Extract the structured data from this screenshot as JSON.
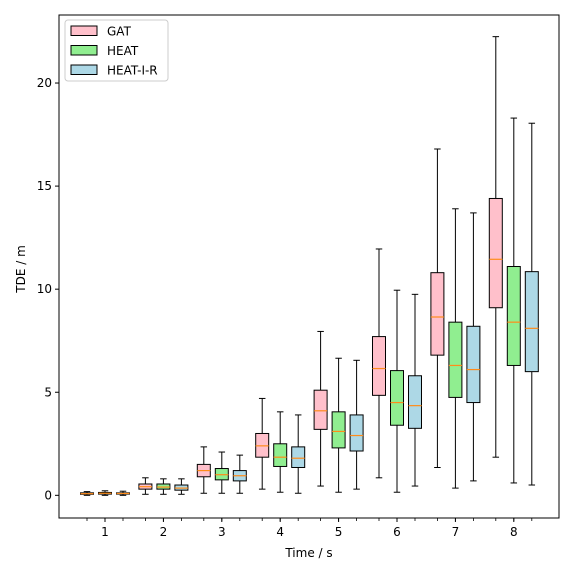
{
  "chart_data": {
    "type": "box",
    "xlabel": "Time / s",
    "ylabel": "TDE / m",
    "ylim": [
      -1.1,
      23.3
    ],
    "yticks": [
      0,
      5,
      10,
      15,
      20
    ],
    "categories": [
      "1",
      "2",
      "3",
      "4",
      "5",
      "6",
      "7",
      "8"
    ],
    "legend_position": "upper-left",
    "median_color": "#ff8c1a",
    "series": [
      {
        "name": "GAT",
        "color": "#ffc0cb",
        "boxes": [
          {
            "min": 0.0,
            "q1": 0.05,
            "median": 0.08,
            "q3": 0.12,
            "max": 0.18
          },
          {
            "min": 0.05,
            "q1": 0.3,
            "median": 0.42,
            "q3": 0.55,
            "max": 0.85
          },
          {
            "min": 0.1,
            "q1": 0.9,
            "median": 1.2,
            "q3": 1.5,
            "max": 2.35
          },
          {
            "min": 0.3,
            "q1": 1.85,
            "median": 2.4,
            "q3": 3.0,
            "max": 4.7
          },
          {
            "min": 0.45,
            "q1": 3.2,
            "median": 4.1,
            "q3": 5.1,
            "max": 7.95
          },
          {
            "min": 0.85,
            "q1": 4.85,
            "median": 6.15,
            "q3": 7.7,
            "max": 11.95
          },
          {
            "min": 1.35,
            "q1": 6.8,
            "median": 8.65,
            "q3": 10.8,
            "max": 16.8
          },
          {
            "min": 1.85,
            "q1": 9.1,
            "median": 11.45,
            "q3": 14.4,
            "max": 22.25
          }
        ]
      },
      {
        "name": "HEAT",
        "color": "#90ee90",
        "boxes": [
          {
            "min": 0.0,
            "q1": 0.06,
            "median": 0.1,
            "q3": 0.14,
            "max": 0.22
          },
          {
            "min": 0.05,
            "q1": 0.3,
            "median": 0.4,
            "q3": 0.55,
            "max": 0.8
          },
          {
            "min": 0.1,
            "q1": 0.75,
            "median": 1.0,
            "q3": 1.3,
            "max": 2.1
          },
          {
            "min": 0.15,
            "q1": 1.4,
            "median": 1.85,
            "q3": 2.5,
            "max": 4.05
          },
          {
            "min": 0.15,
            "q1": 2.3,
            "median": 3.1,
            "q3": 4.05,
            "max": 6.65
          },
          {
            "min": 0.15,
            "q1": 3.4,
            "median": 4.5,
            "q3": 6.05,
            "max": 9.95
          },
          {
            "min": 0.35,
            "q1": 4.75,
            "median": 6.3,
            "q3": 8.4,
            "max": 13.9
          },
          {
            "min": 0.6,
            "q1": 6.3,
            "median": 8.4,
            "q3": 11.1,
            "max": 18.3
          }
        ]
      },
      {
        "name": "HEAT-I-R",
        "color": "#add8e6",
        "boxes": [
          {
            "min": 0.0,
            "q1": 0.06,
            "median": 0.09,
            "q3": 0.12,
            "max": 0.2
          },
          {
            "min": 0.05,
            "q1": 0.25,
            "median": 0.35,
            "q3": 0.5,
            "max": 0.8
          },
          {
            "min": 0.1,
            "q1": 0.7,
            "median": 0.95,
            "q3": 1.2,
            "max": 1.95
          },
          {
            "min": 0.1,
            "q1": 1.35,
            "median": 1.8,
            "q3": 2.35,
            "max": 3.9
          },
          {
            "min": 0.3,
            "q1": 2.15,
            "median": 2.9,
            "q3": 3.9,
            "max": 6.55
          },
          {
            "min": 0.45,
            "q1": 3.25,
            "median": 4.35,
            "q3": 5.8,
            "max": 9.75
          },
          {
            "min": 0.7,
            "q1": 4.5,
            "median": 6.1,
            "q3": 8.2,
            "max": 13.7
          },
          {
            "min": 0.5,
            "q1": 6.0,
            "median": 8.1,
            "q3": 10.85,
            "max": 18.05
          }
        ]
      }
    ]
  }
}
